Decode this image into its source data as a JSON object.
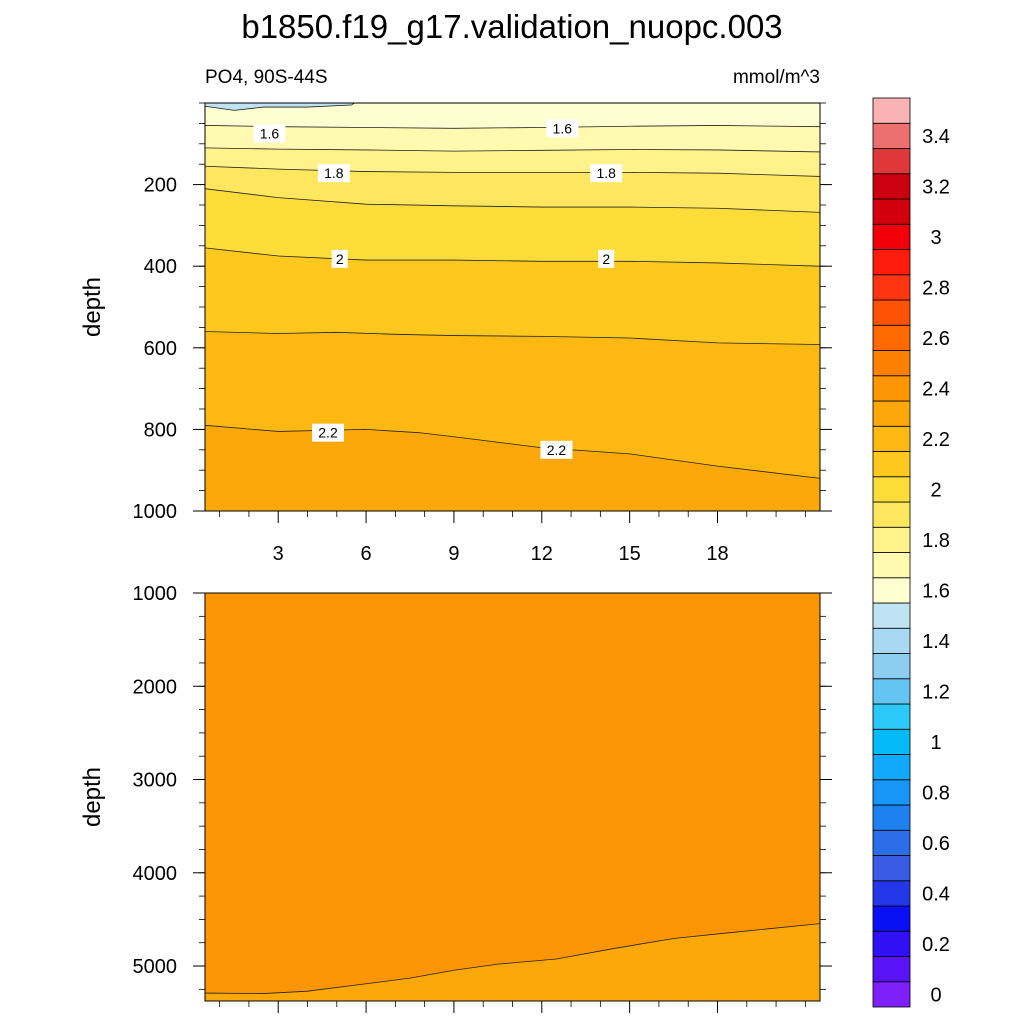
{
  "chart_data": {
    "type": "contour",
    "title": "b1850.f19_g17.validation_nuopc.003",
    "subtitle_left": "PO4, 90S-44S",
    "subtitle_right": "mmol/m^3",
    "colors": [
      "#7f1ffa",
      "#5a13f7",
      "#3110f5",
      "#0a10f6",
      "#2437e8",
      "#3a5be4",
      "#2b6ee8",
      "#1f81f0",
      "#1896f8",
      "#10a9fc",
      "#04bbf8",
      "#2bc9f9",
      "#64c5f3",
      "#8ccdf0",
      "#a8d8f2",
      "#bfe3f3",
      "#fffed0",
      "#fffab0",
      "#fff28a",
      "#fee75e",
      "#fedc3a",
      "#fec81f",
      "#fdb912",
      "#fda80a",
      "#fe9504",
      "#fe8000",
      "#fe6a00",
      "#fe5204",
      "#fe3510",
      "#fe1d0c",
      "#f2000a",
      "#d2000c",
      "#cb0010",
      "#e0373a",
      "#ec7070",
      "#f9b3b3"
    ],
    "colorbar_labels": [
      "0",
      "0.2",
      "0.4",
      "0.6",
      "0.8",
      "1",
      "1.2",
      "1.4",
      "1.6",
      "1.8",
      "2",
      "2.2",
      "2.4",
      "2.6",
      "2.8",
      "3",
      "3.2",
      "3.4"
    ],
    "x_ticks": [
      "3",
      "6",
      "9",
      "12",
      "15",
      "18"
    ],
    "x_range": [
      0.5,
      21.5
    ],
    "panels": [
      {
        "ylabel": "depth",
        "y_range": [
          0,
          1000
        ],
        "y_ticks": [
          "200",
          "400",
          "600",
          "800",
          "1000"
        ],
        "base_value": 2.3,
        "contours": [
          {
            "level": 1.5,
            "points": [
              [
                0.5,
                8
              ],
              [
                1.5,
                18
              ],
              [
                2.5,
                10
              ],
              [
                4,
                10
              ],
              [
                5.5,
                5
              ],
              [
                5.6,
                0
              ]
            ]
          },
          {
            "level": 1.6,
            "points": [
              [
                0.5,
                55
              ],
              [
                3,
                58
              ],
              [
                6,
                60
              ],
              [
                9,
                62
              ],
              [
                12,
                60
              ],
              [
                15,
                57
              ],
              [
                18,
                55
              ],
              [
                21.5,
                58
              ]
            ]
          },
          {
            "level": 1.7,
            "points": [
              [
                0.5,
                110
              ],
              [
                3,
                113
              ],
              [
                6,
                115
              ],
              [
                9,
                118
              ],
              [
                12,
                116
              ],
              [
                15,
                114
              ],
              [
                18,
                115
              ],
              [
                21.5,
                120
              ]
            ]
          },
          {
            "level": 1.8,
            "points": [
              [
                0.5,
                155
              ],
              [
                3,
                162
              ],
              [
                6,
                168
              ],
              [
                9,
                170
              ],
              [
                12,
                170
              ],
              [
                15,
                170
              ],
              [
                18,
                172
              ],
              [
                21.5,
                180
              ]
            ]
          },
          {
            "level": 1.9,
            "points": [
              [
                0.5,
                210
              ],
              [
                3,
                232
              ],
              [
                6,
                248
              ],
              [
                9,
                252
              ],
              [
                12,
                255
              ],
              [
                15,
                255
              ],
              [
                18,
                258
              ],
              [
                21.5,
                268
              ]
            ]
          },
          {
            "level": 2.0,
            "points": [
              [
                0.5,
                355
              ],
              [
                3,
                375
              ],
              [
                6,
                385
              ],
              [
                9,
                385
              ],
              [
                12,
                388
              ],
              [
                15,
                388
              ],
              [
                18,
                392
              ],
              [
                21.5,
                400
              ]
            ]
          },
          {
            "level": 2.1,
            "points": [
              [
                0.5,
                560
              ],
              [
                3,
                565
              ],
              [
                5,
                562
              ],
              [
                7,
                567
              ],
              [
                9,
                570
              ],
              [
                12,
                572
              ],
              [
                15,
                576
              ],
              [
                18,
                588
              ],
              [
                21.5,
                592
              ]
            ]
          },
          {
            "level": 2.2,
            "points": [
              [
                0.5,
                790
              ],
              [
                3,
                805
              ],
              [
                6,
                800
              ],
              [
                7.8,
                808
              ],
              [
                9,
                818
              ],
              [
                12,
                845
              ],
              [
                15,
                860
              ],
              [
                18,
                890
              ],
              [
                21.5,
                920
              ]
            ]
          }
        ],
        "labels": [
          {
            "text": "1.6",
            "x": 2.7,
            "y": 75
          },
          {
            "text": "1.6",
            "x": 12.7,
            "y": 62
          },
          {
            "text": "1.8",
            "x": 4.9,
            "y": 172
          },
          {
            "text": "1.8",
            "x": 14.2,
            "y": 172
          },
          {
            "text": "2",
            "x": 5.1,
            "y": 382
          },
          {
            "text": "2",
            "x": 14.2,
            "y": 382
          },
          {
            "text": "2.2",
            "x": 4.7,
            "y": 808
          },
          {
            "text": "2.2",
            "x": 12.5,
            "y": 850
          }
        ]
      },
      {
        "ylabel": "depth",
        "y_range": [
          1000,
          5375
        ],
        "y_ticks": [
          "1000",
          "2000",
          "3000",
          "4000",
          "5000"
        ],
        "base_value": 2.3,
        "contours": [
          {
            "level": 2.4,
            "points": [
              [
                0.5,
                5290
              ],
              [
                2.5,
                5295
              ],
              [
                4,
                5270
              ],
              [
                6,
                5190
              ],
              [
                7.5,
                5130
              ],
              [
                9,
                5045
              ],
              [
                10.5,
                4980
              ],
              [
                12.5,
                4925
              ],
              [
                14.5,
                4810
              ],
              [
                16.5,
                4705
              ],
              [
                18.5,
                4640
              ],
              [
                21.5,
                4545
              ]
            ]
          }
        ],
        "labels": []
      }
    ]
  }
}
